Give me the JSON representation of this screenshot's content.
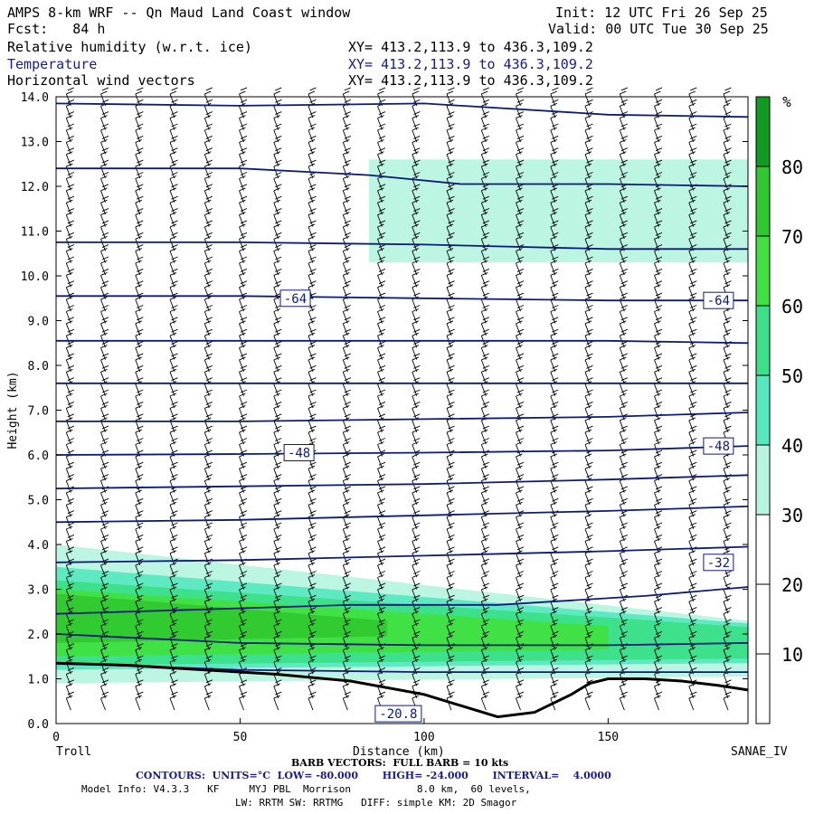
{
  "header": {
    "title": "AMPS 8-km WRF -- Qn Maud Land Coast window",
    "forecast": "Fcst:   84 h",
    "init": "Init: 12 UTC Fri 26 Sep 25",
    "valid": "Valid: 00 UTC Tue 30 Sep 25",
    "fields": [
      {
        "name": "Relative humidity (w.r.t. ice)",
        "xy": "XY= 413.2,113.9 to 436.3,109.2"
      },
      {
        "name": "Temperature",
        "xy": "XY= 413.2,113.9 to 436.3,109.2"
      },
      {
        "name": "Horizontal wind vectors",
        "xy": "XY= 413.2,113.9 to 436.3,109.2"
      }
    ]
  },
  "footer": {
    "left_station": "Troll",
    "right_station": "SANAE_IV",
    "barb_note": "BARB VECTORS:  FULL BARB = 10 kts",
    "contours": "CONTOURS:  UNITS=°C  LOW= -80.000       HIGH= -24.000       INTERVAL=    4.0000",
    "model_info": "Model Info: V4.3.3   KF     MYJ PBL  Morrison           8.0 km,  60 levels,",
    "model_info2": "LW: RRTM SW: RRTMG   DIFF: simple KM: 2D Smagor"
  },
  "colors": {
    "contour": "#0d1a78",
    "rh_30_40": "#b8f5e0",
    "rh_40_50": "#58e8c0",
    "rh_50_60": "#3ce088",
    "rh_60_70": "#40e040",
    "rh_70_80": "#30c830",
    "rh_80_plus": "#109a20"
  },
  "chart_data": {
    "type": "heatmap",
    "title": "Vertical cross-section: Relative humidity (w.r.t. ice), Temperature, Horizontal wind vectors",
    "xlabel": "Distance (km)",
    "ylabel": "Height (km)",
    "xlim": [
      0,
      188
    ],
    "ylim": [
      0,
      14
    ],
    "xticks": [
      0,
      50,
      100,
      150
    ],
    "yticks": [
      "0.0",
      "1.0",
      "2.0",
      "3.0",
      "4.0",
      "5.0",
      "6.0",
      "7.0",
      "8.0",
      "9.0",
      "10.0",
      "11.0",
      "12.0",
      "13.0",
      "14.0"
    ],
    "colorbar": {
      "unit": "%",
      "levels": [
        10,
        20,
        30,
        40,
        50,
        60,
        70,
        80
      ]
    },
    "temperature_labels": [
      {
        "text": "-64",
        "x": 65,
        "y": 9.5
      },
      {
        "text": "-64",
        "x": 180,
        "y": 9.45
      },
      {
        "text": "-48",
        "x": 66,
        "y": 6.05
      },
      {
        "text": "-48",
        "x": 180,
        "y": 6.2
      },
      {
        "text": "-32",
        "x": 180,
        "y": 3.6
      },
      {
        "text": "-20.8",
        "x": 93,
        "y": 0.22
      }
    ],
    "temperature_contours_km": [
      {
        "x": [
          0,
          50,
          100,
          150,
          188
        ],
        "y": [
          13.85,
          13.8,
          13.85,
          13.6,
          13.55
        ]
      },
      {
        "x": [
          0,
          50,
          85,
          110,
          150,
          188
        ],
        "y": [
          12.4,
          12.4,
          12.25,
          12.05,
          12.05,
          12.0
        ]
      },
      {
        "x": [
          0,
          50,
          100,
          150,
          188
        ],
        "y": [
          10.75,
          10.75,
          10.7,
          10.6,
          10.6
        ]
      },
      {
        "x": [
          0,
          50,
          100,
          150,
          188
        ],
        "y": [
          9.55,
          9.55,
          9.5,
          9.45,
          9.45
        ]
      },
      {
        "x": [
          0,
          50,
          100,
          150,
          188
        ],
        "y": [
          8.55,
          8.55,
          8.55,
          8.55,
          8.5
        ]
      },
      {
        "x": [
          0,
          50,
          100,
          150,
          188
        ],
        "y": [
          7.6,
          7.6,
          7.6,
          7.6,
          7.6
        ]
      },
      {
        "x": [
          0,
          50,
          100,
          150,
          188
        ],
        "y": [
          6.75,
          6.75,
          6.8,
          6.85,
          6.95
        ]
      },
      {
        "x": [
          0,
          50,
          100,
          150,
          188
        ],
        "y": [
          6.0,
          6.02,
          6.05,
          6.1,
          6.2
        ]
      },
      {
        "x": [
          0,
          50,
          100,
          150,
          188
        ],
        "y": [
          5.25,
          5.3,
          5.35,
          5.45,
          5.55
        ]
      },
      {
        "x": [
          0,
          50,
          100,
          150,
          188
        ],
        "y": [
          4.5,
          4.55,
          4.65,
          4.75,
          4.85
        ]
      },
      {
        "x": [
          0,
          50,
          100,
          150,
          188
        ],
        "y": [
          3.6,
          3.65,
          3.75,
          3.85,
          3.95
        ]
      },
      {
        "x": [
          0,
          40,
          80,
          120,
          160,
          188
        ],
        "y": [
          2.45,
          2.55,
          2.65,
          2.65,
          2.85,
          3.05
        ]
      },
      {
        "x": [
          0,
          50,
          100,
          150,
          188
        ],
        "y": [
          2.0,
          1.8,
          1.75,
          1.75,
          1.8
        ]
      },
      {
        "x": [
          0,
          50,
          100,
          150,
          188
        ],
        "y": [
          1.35,
          1.2,
          1.15,
          1.15,
          1.15
        ]
      }
    ],
    "terrain_km": {
      "x": [
        0,
        20,
        40,
        60,
        80,
        100,
        110,
        120,
        130,
        140,
        145,
        150,
        160,
        170,
        180,
        188
      ],
      "y": [
        1.35,
        1.3,
        1.2,
        1.1,
        0.95,
        0.65,
        0.4,
        0.15,
        0.25,
        0.65,
        0.9,
        1.0,
        1.0,
        0.95,
        0.85,
        0.75
      ]
    },
    "rh_regions": [
      {
        "level": "30-40",
        "description": "upper moist layer",
        "x": [
          85,
          188
        ],
        "y": [
          10.3,
          12.6
        ]
      },
      {
        "level": "30-40",
        "description": "lower moist layer",
        "x": [
          0,
          188
        ],
        "y": [
          0.9,
          4.0
        ]
      },
      {
        "level": "40-50",
        "description": "lower moist layer",
        "x": [
          0,
          188
        ],
        "y": [
          1.2,
          3.5
        ]
      },
      {
        "level": "50-60",
        "description": "lower moist layer",
        "x": [
          0,
          188
        ],
        "y": [
          1.3,
          3.2
        ]
      },
      {
        "level": "60-70",
        "description": "lower moist layer",
        "x": [
          0,
          150
        ],
        "y": [
          1.5,
          3.0
        ]
      },
      {
        "level": "70-80",
        "description": "lower moist layer",
        "x": [
          0,
          90
        ],
        "y": [
          1.8,
          2.9
        ]
      }
    ],
    "wind_barbs": "grid of barbs every ~9.4 km horizontally and ~0.25 km vertically, predominantly westerly"
  }
}
